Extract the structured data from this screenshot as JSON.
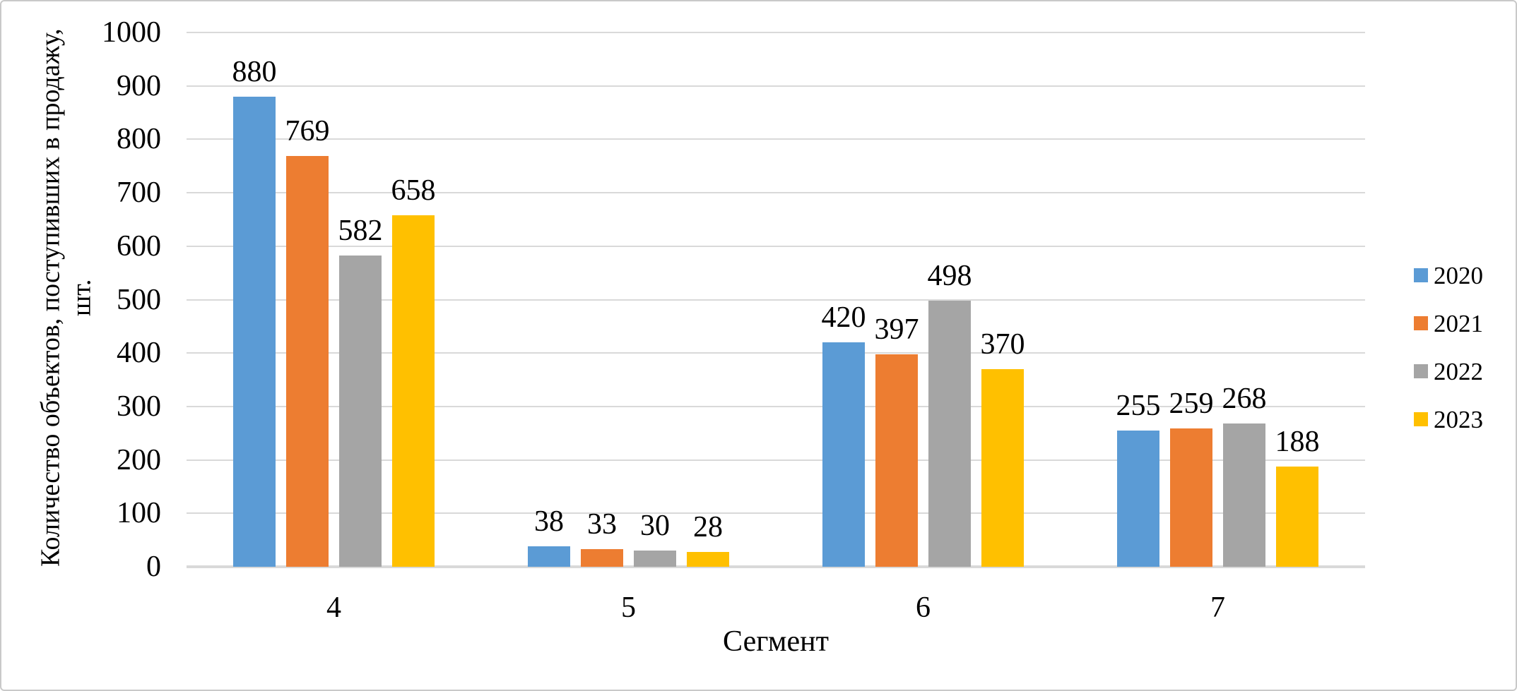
{
  "chart_data": {
    "type": "bar",
    "title": "",
    "categories": [
      "4",
      "5",
      "6",
      "7"
    ],
    "series": [
      {
        "name": "2020",
        "color": "#5B9BD5",
        "values": [
          880,
          38,
          420,
          255
        ]
      },
      {
        "name": "2021",
        "color": "#ED7D31",
        "values": [
          769,
          33,
          397,
          259
        ]
      },
      {
        "name": "2022",
        "color": "#A5A5A5",
        "values": [
          582,
          30,
          498,
          268
        ]
      },
      {
        "name": "2023",
        "color": "#FFC000",
        "values": [
          658,
          28,
          370,
          188
        ]
      }
    ],
    "xlabel": "Сегмент",
    "ylabel": "Количество объектов, поступивших в продажу, шт.",
    "ylabel_line1": "Количество объектов, поступивших в продажу,",
    "ylabel_line2": "шт.",
    "ylim": [
      0,
      1000
    ],
    "yticks": [
      0,
      100,
      200,
      300,
      400,
      500,
      600,
      700,
      800,
      900,
      1000
    ],
    "grid": true,
    "legend_position": "right",
    "data_labels": true,
    "style": {
      "gridline_color": "#D9D9D9",
      "axis_line_color": "#D9D9D9",
      "text_color": "#000000",
      "background_color": "#FFFFFF",
      "border_color": "#C9C9C9"
    }
  }
}
